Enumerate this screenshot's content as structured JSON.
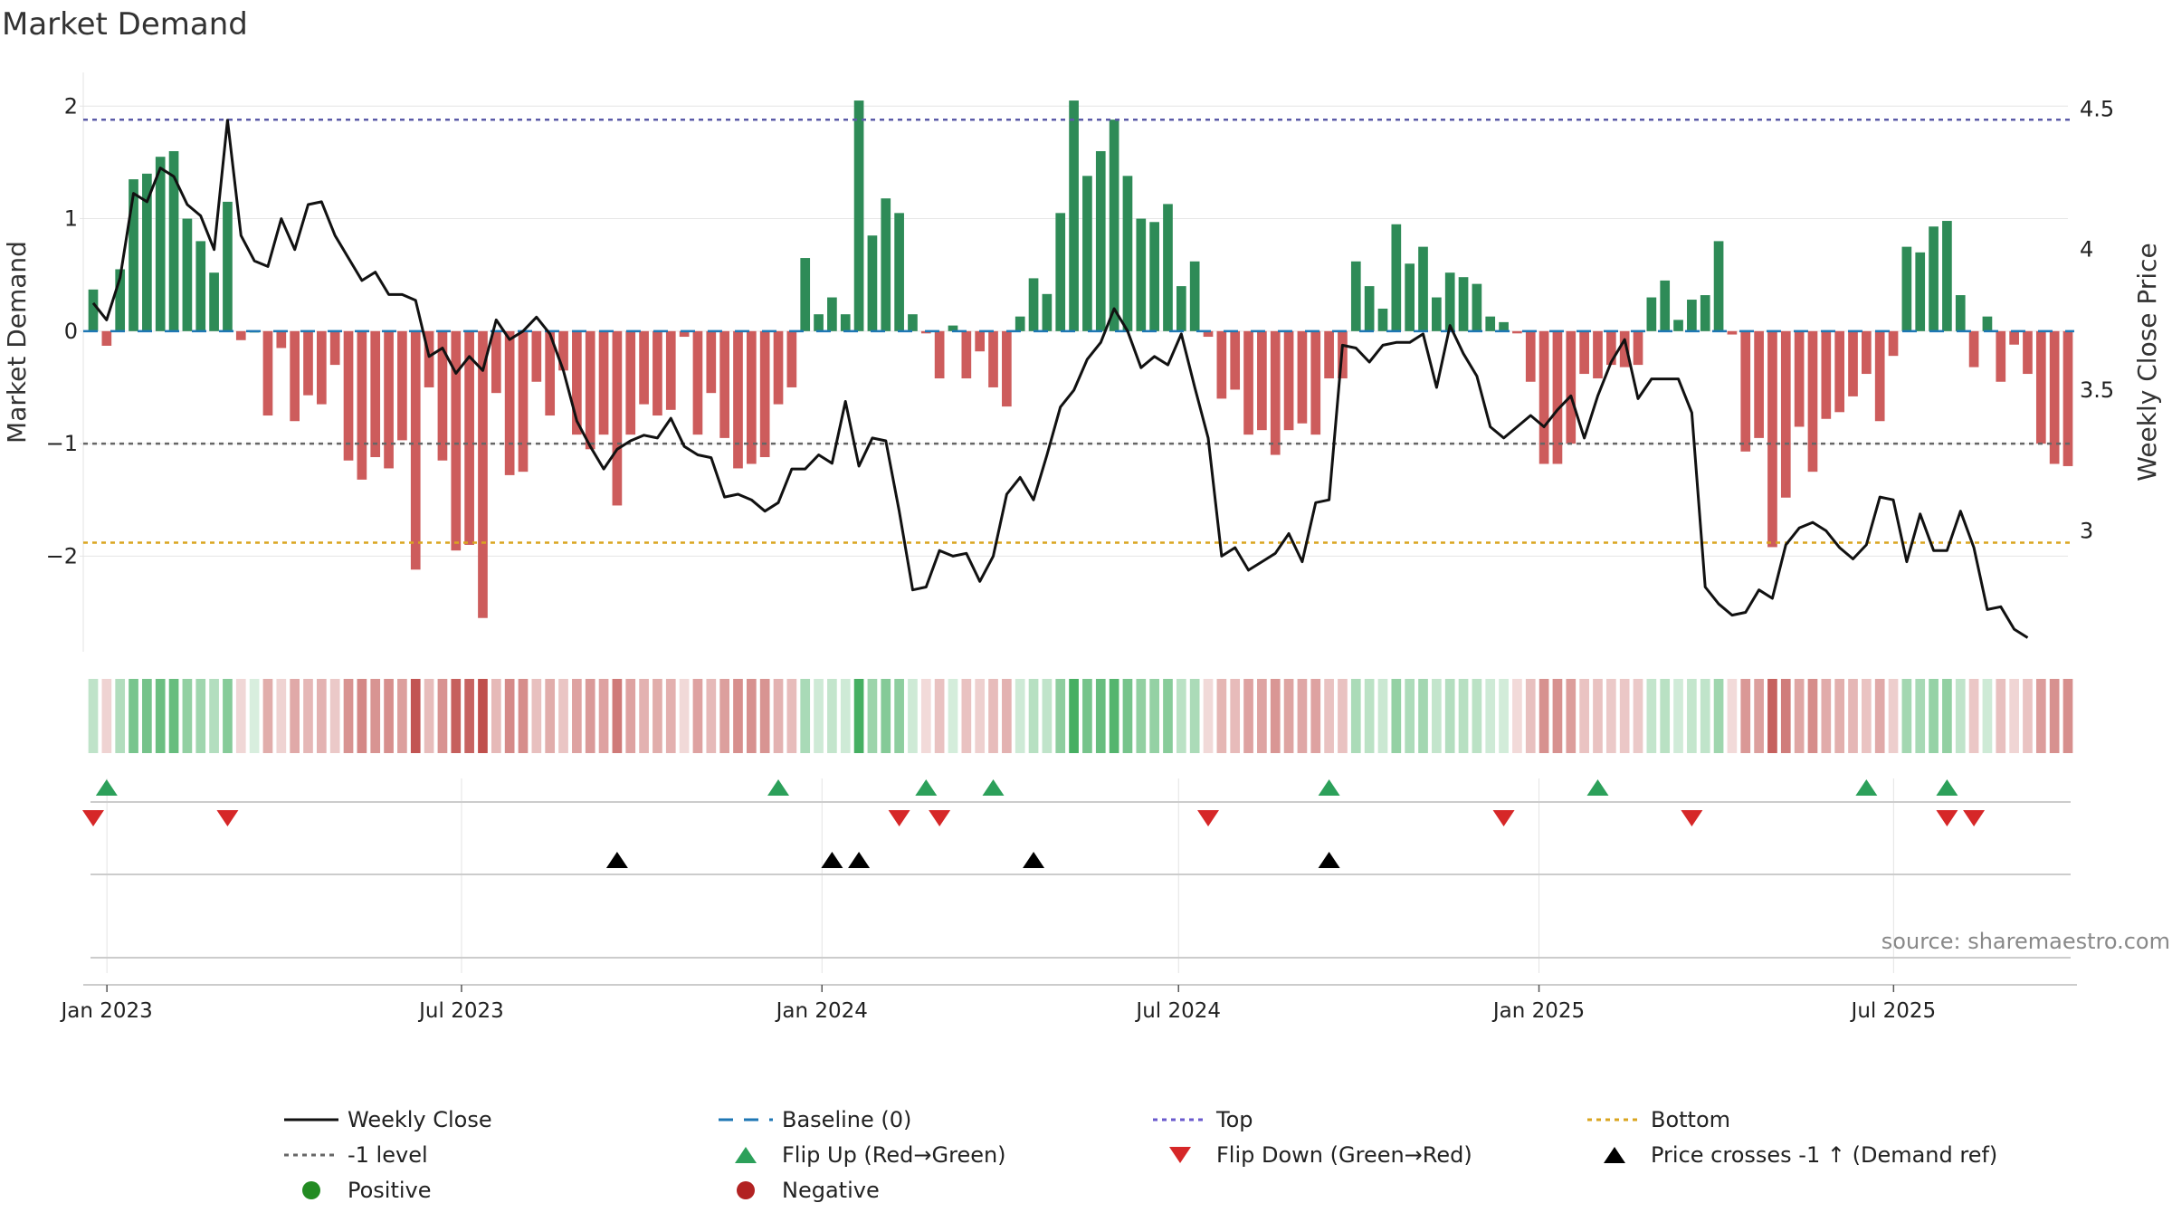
{
  "chart_data": {
    "type": "bar",
    "title": "Market Demand",
    "ylabel_left": "Market Demand",
    "ylabel_right": "Weekly Close Price",
    "source": "source: sharemaestro.com",
    "left_axis": {
      "ylim": [
        -2.85,
        2.3
      ],
      "ticks": [
        2,
        1,
        0,
        -1,
        -2
      ],
      "tick_labels": [
        "2",
        "1",
        "0",
        "−1",
        "−2"
      ]
    },
    "right_axis": {
      "ylim": [
        2.57,
        4.63
      ],
      "ticks": [
        4.5,
        4,
        3.5,
        3
      ],
      "tick_labels": [
        "4.5",
        "4",
        "3.5",
        "3"
      ]
    },
    "x_axis": {
      "start_date": "2022-12-25",
      "end_date": "2025-09-28",
      "tick_dates": [
        "2023-01-01",
        "2023-07-01",
        "2024-01-01",
        "2024-07-01",
        "2025-01-01",
        "2025-07-01"
      ],
      "tick_labels": [
        "Jan 2023",
        "Jul 2023",
        "Jan 2024",
        "Jul 2024",
        "Jan 2025",
        "Jul 2025"
      ]
    },
    "reference_lines": {
      "top": 1.88,
      "bottom": -1.88,
      "minus_one": -1,
      "baseline": 0
    },
    "series": [
      {
        "name": "Market Demand",
        "values": [
          0.37,
          -0.13,
          0.55,
          1.35,
          1.4,
          1.55,
          1.6,
          1.0,
          0.8,
          0.52,
          1.15,
          -0.08,
          0.0,
          -0.75,
          -0.15,
          -0.8,
          -0.57,
          -0.65,
          -0.3,
          -1.15,
          -1.32,
          -1.12,
          -1.22,
          -0.97,
          -2.12,
          -0.5,
          -1.15,
          -1.95,
          -1.9,
          -2.55,
          -0.55,
          -1.28,
          -1.25,
          -0.45,
          -0.75,
          -0.35,
          -0.92,
          -1.05,
          -0.92,
          -1.55,
          -0.92,
          -0.65,
          -0.75,
          -0.7,
          -0.05,
          -0.92,
          -0.55,
          -0.95,
          -1.22,
          -1.18,
          -1.12,
          -0.65,
          -0.5,
          0.65,
          0.15,
          0.3,
          0.15,
          2.05,
          0.85,
          1.18,
          1.05,
          0.15,
          -0.02,
          -0.42,
          0.05,
          -0.42,
          -0.18,
          -0.5,
          -0.67,
          0.13,
          0.47,
          0.33,
          1.05,
          2.05,
          1.38,
          1.6,
          1.88,
          1.38,
          1.0,
          0.97,
          1.13,
          0.4,
          0.62,
          -0.05,
          -0.6,
          -0.52,
          -0.92,
          -0.88,
          -1.1,
          -0.88,
          -0.82,
          -0.92,
          -0.42,
          -0.42,
          0.62,
          0.4,
          0.2,
          0.95,
          0.6,
          0.75,
          0.3,
          0.52,
          0.48,
          0.42,
          0.13,
          0.08,
          -0.02,
          -0.45,
          -1.18,
          -1.18,
          -1.0,
          -0.38,
          -0.42,
          -0.3,
          -0.32,
          -0.3,
          0.3,
          0.45,
          0.1,
          0.28,
          0.32,
          0.8,
          -0.03,
          -1.07,
          -0.95,
          -1.92,
          -1.48,
          -0.85,
          -1.25,
          -0.78,
          -0.72,
          -0.58,
          -0.38,
          -0.8,
          -0.22,
          0.75,
          0.7,
          0.93,
          0.98,
          0.32,
          -0.32,
          0.13,
          -0.45,
          -0.12,
          -0.38,
          -1.0,
          -1.18,
          -1.2
        ],
        "color_positive": "#2e8b57",
        "color_negative": "#cd5c5c"
      },
      {
        "name": "Weekly Close",
        "values": [
          3.81,
          3.75,
          3.9,
          4.2,
          4.17,
          4.29,
          4.26,
          4.16,
          4.12,
          4.0,
          4.46,
          4.05,
          3.96,
          3.94,
          4.11,
          4.0,
          4.16,
          4.17,
          4.05,
          3.97,
          3.89,
          3.92,
          3.84,
          3.84,
          3.82,
          3.62,
          3.65,
          3.56,
          3.62,
          3.57,
          3.75,
          3.68,
          3.71,
          3.76,
          3.7,
          3.57,
          3.39,
          3.3,
          3.22,
          3.29,
          3.32,
          3.34,
          3.33,
          3.4,
          3.3,
          3.27,
          3.26,
          3.12,
          3.13,
          3.11,
          3.07,
          3.1,
          3.22,
          3.22,
          3.27,
          3.24,
          3.46,
          3.23,
          3.33,
          3.32,
          3.07,
          2.79,
          2.8,
          2.93,
          2.91,
          2.92,
          2.82,
          2.91,
          3.13,
          3.19,
          3.11,
          3.27,
          3.44,
          3.5,
          3.61,
          3.67,
          3.79,
          3.71,
          3.58,
          3.62,
          3.59,
          3.7,
          3.51,
          3.33,
          2.91,
          2.94,
          2.86,
          2.89,
          2.92,
          2.99,
          2.89,
          3.1,
          3.11,
          3.66,
          3.65,
          3.6,
          3.66,
          3.67,
          3.67,
          3.7,
          3.51,
          3.73,
          3.63,
          3.55,
          3.37,
          3.33,
          3.37,
          3.41,
          3.37,
          3.43,
          3.48,
          3.33,
          3.48,
          3.6,
          3.68,
          3.47,
          3.54,
          3.54,
          3.54,
          3.42,
          2.8,
          2.74,
          2.7,
          2.71,
          2.79,
          2.76,
          2.95,
          3.01,
          3.03,
          3.0,
          2.94,
          2.9,
          2.95,
          3.12,
          3.11,
          2.89,
          3.06,
          2.93,
          2.93,
          3.07,
          2.94,
          2.72,
          2.73,
          2.65,
          2.62
        ],
        "color": "#111111"
      }
    ],
    "flip_up_weeks": [
      1,
      51,
      62,
      67,
      92,
      112,
      132,
      138
    ],
    "flip_down_weeks": [
      0,
      10,
      60,
      63,
      83,
      105,
      119,
      138,
      140
    ],
    "price_cross_weeks": [
      39,
      55,
      57,
      70,
      92
    ],
    "legend": [
      {
        "label": "Weekly Close",
        "symbol": "line",
        "color": "#111111"
      },
      {
        "label": "Baseline (0)",
        "symbol": "dash",
        "color": "#1f77b4"
      },
      {
        "label": "Top",
        "symbol": "dot",
        "color": "#6a5acd"
      },
      {
        "label": "Bottom",
        "symbol": "dot",
        "color": "#daa520"
      },
      {
        "label": "-1 level",
        "symbol": "dot",
        "color": "#666666"
      },
      {
        "label": "Flip Up (Red→Green)",
        "symbol": "tri-up",
        "color": "#2ca05a"
      },
      {
        "label": "Flip Down (Green→Red)",
        "symbol": "tri-down",
        "color": "#d62728"
      },
      {
        "label": "Price crosses -1 ↑ (Demand ref)",
        "symbol": "tri-up",
        "color": "#000000"
      },
      {
        "label": "Positive",
        "symbol": "circle",
        "color": "#228b22"
      },
      {
        "label": "Negative",
        "symbol": "circle",
        "color": "#b22222"
      }
    ]
  }
}
